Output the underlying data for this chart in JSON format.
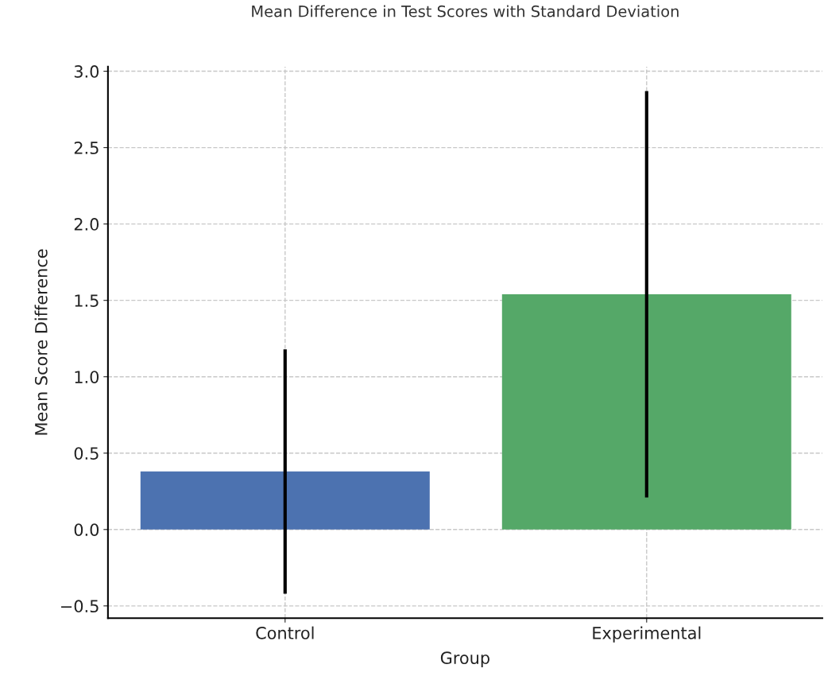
{
  "chart_data": {
    "type": "bar",
    "title": "Mean Difference in Test Scores with Standard Deviation",
    "xlabel": "Group",
    "ylabel": "Mean Score Difference",
    "categories": [
      "Control",
      "Experimental"
    ],
    "values": [
      0.38,
      1.54
    ],
    "errors": [
      0.8,
      1.33
    ],
    "colors": [
      "#4c72b0",
      "#55a868"
    ],
    "ylim": [
      -0.58,
      3.03
    ],
    "yticks": [
      {
        "value": -0.5,
        "label": "−0.5"
      },
      {
        "value": 0.0,
        "label": "0.0"
      },
      {
        "value": 0.5,
        "label": "0.5"
      },
      {
        "value": 1.0,
        "label": "1.0"
      },
      {
        "value": 1.5,
        "label": "1.5"
      },
      {
        "value": 2.0,
        "label": "2.0"
      },
      {
        "value": 2.5,
        "label": "2.5"
      },
      {
        "value": 3.0,
        "label": "3.0"
      }
    ],
    "grid": true
  }
}
